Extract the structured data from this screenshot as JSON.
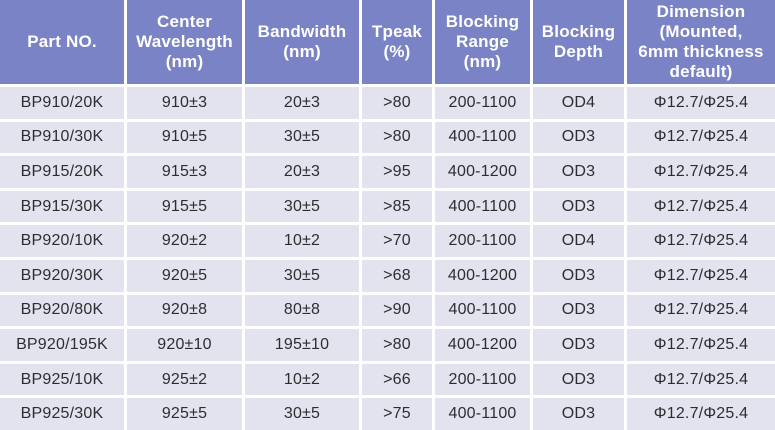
{
  "table": {
    "columns": [
      {
        "id": "part-no",
        "label": "Part NO."
      },
      {
        "id": "center-wavelength",
        "label": "Center\nWavelength\n(nm)"
      },
      {
        "id": "bandwidth",
        "label": "Bandwidth\n(nm)"
      },
      {
        "id": "tpeak",
        "label": "Tpeak\n(%)"
      },
      {
        "id": "blocking-range",
        "label": "Blocking\nRange\n(nm)"
      },
      {
        "id": "blocking-depth",
        "label": "Blocking\nDepth"
      },
      {
        "id": "dimension",
        "label": "Dimension\n(Mounted,\n6mm thickness\ndefault)"
      }
    ],
    "rows": [
      [
        "BP910/20K",
        "910±3",
        "20±3",
        ">80",
        "200-1100",
        "OD4",
        "Φ12.7/Φ25.4"
      ],
      [
        "BP910/30K",
        "910±5",
        "30±5",
        ">80",
        "400-1100",
        "OD3",
        "Φ12.7/Φ25.4"
      ],
      [
        "BP915/20K",
        "915±3",
        "20±3",
        ">95",
        "400-1200",
        "OD3",
        "Φ12.7/Φ25.4"
      ],
      [
        "BP915/30K",
        "915±5",
        "30±5",
        ">85",
        "400-1100",
        "OD3",
        "Φ12.7/Φ25.4"
      ],
      [
        "BP920/10K",
        "920±2",
        "10±2",
        ">70",
        "200-1100",
        "OD4",
        "Φ12.7/Φ25.4"
      ],
      [
        "BP920/30K",
        "920±5",
        "30±5",
        ">68",
        "400-1200",
        "OD3",
        "Φ12.7/Φ25.4"
      ],
      [
        "BP920/80K",
        "920±8",
        "80±8",
        ">90",
        "400-1100",
        "OD3",
        "Φ12.7/Φ25.4"
      ],
      [
        "BP920/195K",
        "920±10",
        "195±10",
        ">80",
        "400-1200",
        "OD3",
        "Φ12.7/Φ25.4"
      ],
      [
        "BP925/10K",
        "925±2",
        "10±2",
        ">66",
        "200-1100",
        "OD3",
        "Φ12.7/Φ25.4"
      ],
      [
        "BP925/30K",
        "925±5",
        "30±5",
        ">75",
        "400-1100",
        "OD3",
        "Φ12.7/Φ25.4"
      ]
    ]
  },
  "colors": {
    "header_bg": "#7a83c5",
    "header_text": "#ffffff",
    "cell_bg": "#e3e3ef",
    "cell_text": "#2d2d31",
    "grid": "#ffffff"
  }
}
